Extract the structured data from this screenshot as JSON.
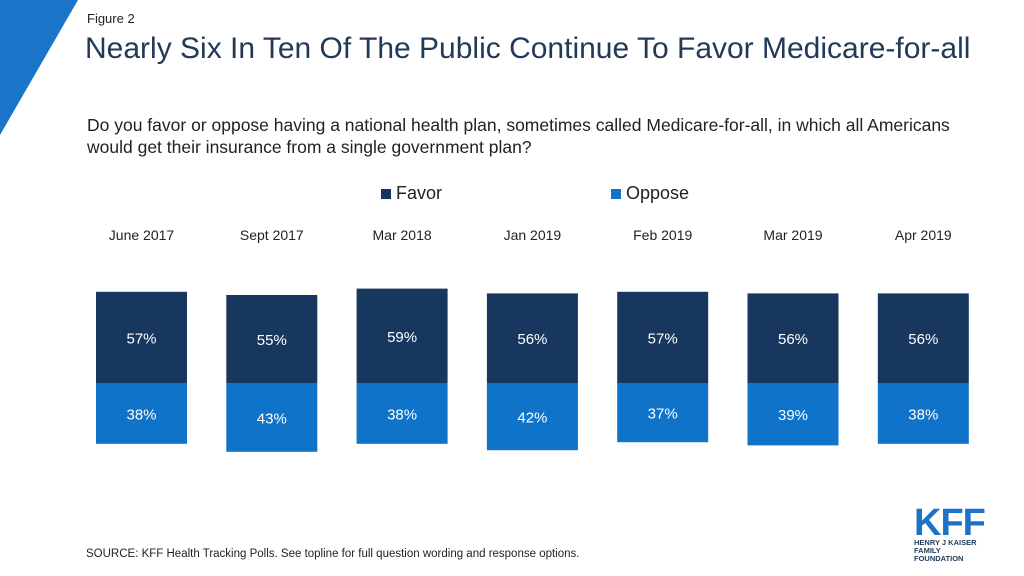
{
  "figure_label": "Figure 2",
  "title": "Nearly Six In Ten Of The Public Continue To Favor Medicare-for-all",
  "subtitle": "Do you favor or oppose having a national health plan, sometimes called Medicare-for-all, in which all Americans would get their insurance from a single government plan?",
  "legend": {
    "favor": "Favor",
    "oppose": "Oppose"
  },
  "source": "SOURCE: KFF Health Tracking Polls. See topline for full question wording and response options.",
  "logo": {
    "name": "KFF",
    "line1": "HENRY J KAISER",
    "line2": "FAMILY FOUNDATION"
  },
  "colors": {
    "favor": "#17375e",
    "oppose": "#0f73c9",
    "accent": "#1a75c9"
  },
  "chart_data": {
    "type": "bar",
    "stacked": "diverging",
    "categories": [
      "June 2017",
      "Sept 2017",
      "Mar 2018",
      "Jan 2019",
      "Feb 2019",
      "Mar 2019",
      "Apr 2019"
    ],
    "series": [
      {
        "name": "Favor",
        "values": [
          57,
          55,
          59,
          56,
          57,
          56,
          56
        ]
      },
      {
        "name": "Oppose",
        "values": [
          38,
          43,
          38,
          42,
          37,
          39,
          38
        ]
      }
    ],
    "value_suffix": "%",
    "legend_position": "top"
  }
}
